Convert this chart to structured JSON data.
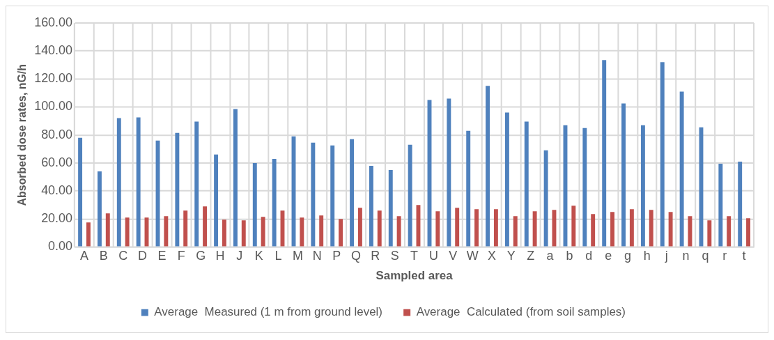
{
  "chart_data": {
    "type": "bar",
    "xlabel": "Sampled area",
    "ylabel": "Absorbed dose rates, nG/h",
    "categories": [
      "A",
      "B",
      "C",
      "D",
      "E",
      "F",
      "G",
      "H",
      "J",
      "K",
      "L",
      "M",
      "N",
      "P",
      "Q",
      "R",
      "S",
      "T",
      "U",
      "V",
      "W",
      "X",
      "Y",
      "Z",
      "a",
      "b",
      "d",
      "e",
      "g",
      "h",
      "j",
      "n",
      "q",
      "r",
      "t"
    ],
    "series": [
      {
        "name": "Average  Measured (1 m from ground level)",
        "color": "#4f81bd",
        "values": [
          78,
          54,
          92,
          92.5,
          76,
          81.5,
          89.5,
          66,
          98.5,
          60,
          63,
          79,
          74.5,
          72.5,
          77,
          58,
          55,
          73,
          105,
          106,
          83,
          115,
          96,
          89.5,
          69,
          87,
          85,
          133.5,
          102.5,
          87,
          132,
          111,
          85.5,
          59.5,
          61
        ]
      },
      {
        "name": "Average  Calculated (from soil samples)",
        "color": "#c0504d",
        "values": [
          17.5,
          24,
          21,
          21,
          22,
          26,
          29,
          19.5,
          19,
          21.5,
          26,
          21,
          22.5,
          20,
          28,
          26,
          22,
          30,
          25.5,
          28,
          27,
          27,
          22,
          25.5,
          26.5,
          29.5,
          23.5,
          25,
          27,
          26.5,
          25,
          22,
          19,
          22,
          20.5
        ]
      }
    ],
    "ylim": [
      0,
      160
    ],
    "yticks": [
      {
        "value": 0,
        "label": "0.00"
      },
      {
        "value": 20,
        "label": "20.00"
      },
      {
        "value": 40,
        "label": "40.00"
      },
      {
        "value": 60,
        "label": "60.00"
      },
      {
        "value": 80,
        "label": "80.00"
      },
      {
        "value": 100,
        "label": "100.00"
      },
      {
        "value": 120,
        "label": "120.00"
      },
      {
        "value": 140,
        "label": "140.00"
      },
      {
        "value": 160,
        "label": "160.00"
      }
    ],
    "grid": true,
    "legend": "bottom"
  }
}
